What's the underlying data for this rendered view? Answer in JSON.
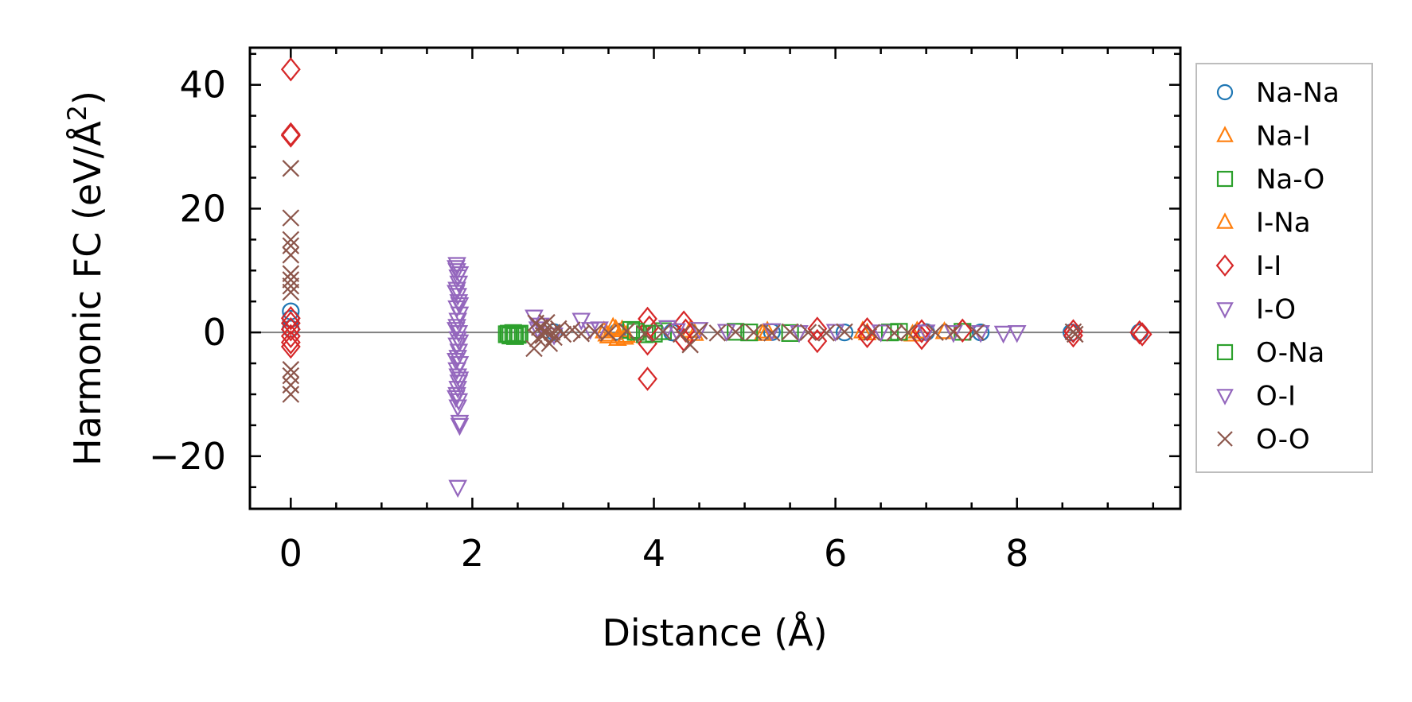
{
  "chart_data": {
    "type": "scatter",
    "title": "",
    "xlabel": "Distance (Å)",
    "ylabel_main": "Harmonic FC (eV/Å",
    "ylabel_sup": "2",
    "ylabel_close": ")",
    "xlim": [
      -0.45,
      9.8
    ],
    "ylim": [
      -28.5,
      46
    ],
    "xticks": [
      0,
      2,
      4,
      6,
      8
    ],
    "xtick_labels": [
      "0",
      "2",
      "4",
      "6",
      "8"
    ],
    "yticks": [
      -20,
      0,
      20,
      40
    ],
    "ytick_labels": [
      "−20",
      "0",
      "20",
      "40"
    ],
    "x_minor_step": 0.5,
    "y_minor_step": 5,
    "zero_line": true,
    "grid": false,
    "legend_position": "outside-right",
    "series": [
      {
        "name": "Na-Na",
        "marker": "circle",
        "color": "#1f77b4",
        "points": [
          [
            0,
            3.4
          ],
          [
            0,
            2.2
          ],
          [
            0,
            0.6
          ],
          [
            9.35,
            0.0
          ],
          [
            2.9,
            0.05
          ],
          [
            3.6,
            0.1
          ],
          [
            4.2,
            0.0
          ],
          [
            5.3,
            0.05
          ],
          [
            6.1,
            0.0
          ],
          [
            7.0,
            0.05
          ],
          [
            7.6,
            0.0
          ],
          [
            8.6,
            0.0
          ]
        ]
      },
      {
        "name": "Na-I",
        "marker": "triangle-up",
        "color": "#ff7f0e",
        "points": [
          [
            3.45,
            0.2
          ],
          [
            3.5,
            -0.6
          ],
          [
            3.55,
            0.8
          ],
          [
            3.6,
            -1.0
          ],
          [
            3.65,
            0.4
          ],
          [
            3.7,
            -0.5
          ],
          [
            4.4,
            0.3
          ],
          [
            5.2,
            -0.2
          ],
          [
            6.3,
            0.2
          ],
          [
            6.85,
            -0.3
          ],
          [
            7.2,
            0.1
          ]
        ]
      },
      {
        "name": "Na-O",
        "marker": "square",
        "color": "#2ca02c",
        "points": [
          [
            2.38,
            -0.3
          ],
          [
            2.42,
            -0.5
          ],
          [
            2.45,
            -0.1
          ],
          [
            2.5,
            -0.4
          ],
          [
            3.75,
            0.4
          ],
          [
            3.9,
            -0.3
          ],
          [
            4.1,
            0.2
          ],
          [
            4.9,
            0.1
          ],
          [
            5.5,
            -0.1
          ],
          [
            6.6,
            0.0
          ],
          [
            7.4,
            0.1
          ]
        ]
      },
      {
        "name": "I-Na",
        "marker": "triangle-up",
        "color": "#ff7f0e",
        "points": [
          [
            3.48,
            -0.3
          ],
          [
            3.58,
            0.5
          ],
          [
            3.68,
            -0.8
          ],
          [
            4.45,
            -0.2
          ],
          [
            5.25,
            0.2
          ],
          [
            6.35,
            -0.1
          ],
          [
            6.9,
            0.2
          ]
        ]
      },
      {
        "name": "I-I",
        "marker": "diamond",
        "color": "#d62728",
        "points": [
          [
            0,
            42.5
          ],
          [
            0,
            32
          ],
          [
            0,
            31.8
          ],
          [
            0,
            2.3
          ],
          [
            0,
            1.5
          ],
          [
            0,
            0.5
          ],
          [
            0,
            -0.6
          ],
          [
            0,
            -1.6
          ],
          [
            0,
            -2.3
          ],
          [
            3.93,
            2.2
          ],
          [
            3.93,
            -1.8
          ],
          [
            3.93,
            -7.5
          ],
          [
            3.95,
            0.8
          ],
          [
            4.33,
            1.6
          ],
          [
            4.33,
            -1.2
          ],
          [
            4.35,
            0.3
          ],
          [
            5.8,
            0.6
          ],
          [
            5.8,
            -1.4
          ],
          [
            6.35,
            0.5
          ],
          [
            6.35,
            -0.6
          ],
          [
            6.95,
            0.2
          ],
          [
            6.95,
            -0.9
          ],
          [
            7.4,
            0.3
          ],
          [
            8.62,
            0.2
          ],
          [
            8.62,
            -0.5
          ],
          [
            9.35,
            0.0
          ],
          [
            9.38,
            -0.3
          ]
        ]
      },
      {
        "name": "I-O",
        "marker": "triangle-down",
        "color": "#9467bd",
        "points": [
          [
            1.83,
            11
          ],
          [
            1.83,
            10
          ],
          [
            1.84,
            9
          ],
          [
            1.85,
            8
          ],
          [
            1.83,
            7
          ],
          [
            1.84,
            6
          ],
          [
            1.85,
            5
          ],
          [
            1.83,
            4
          ],
          [
            1.86,
            3
          ],
          [
            1.84,
            2
          ],
          [
            1.83,
            1
          ],
          [
            1.85,
            0
          ],
          [
            1.84,
            -1
          ],
          [
            1.83,
            -2
          ],
          [
            1.85,
            -3
          ],
          [
            1.84,
            -4
          ],
          [
            1.86,
            -5
          ],
          [
            1.83,
            -6
          ],
          [
            1.84,
            -7
          ],
          [
            1.85,
            -8
          ],
          [
            1.84,
            -9
          ],
          [
            1.83,
            -10
          ],
          [
            1.85,
            -11
          ],
          [
            1.84,
            -12
          ],
          [
            1.86,
            -14.5
          ],
          [
            1.84,
            -25
          ],
          [
            2.68,
            2.5
          ],
          [
            2.72,
            0.6
          ],
          [
            3.2,
            2.0
          ],
          [
            3.3,
            0.5
          ],
          [
            4.15,
            0.8
          ],
          [
            4.5,
            0.5
          ],
          [
            5.3,
            0.3
          ],
          [
            6.0,
            0.2
          ],
          [
            7.0,
            0.1
          ],
          [
            7.6,
            0.0
          ],
          [
            7.85,
            -0.1
          ],
          [
            8.0,
            0.0
          ]
        ]
      },
      {
        "name": "O-Na",
        "marker": "square",
        "color": "#2ca02c",
        "points": [
          [
            2.4,
            -0.2
          ],
          [
            2.47,
            -0.6
          ],
          [
            2.52,
            -0.2
          ],
          [
            3.8,
            0.1
          ],
          [
            4.0,
            -0.2
          ],
          [
            5.05,
            0.0
          ],
          [
            6.7,
            0.1
          ]
        ]
      },
      {
        "name": "O-I",
        "marker": "triangle-down",
        "color": "#9467bd",
        "points": [
          [
            1.82,
            10.5
          ],
          [
            1.86,
            9.5
          ],
          [
            1.82,
            6.5
          ],
          [
            1.86,
            4.5
          ],
          [
            1.82,
            0.5
          ],
          [
            1.86,
            -1.5
          ],
          [
            1.82,
            -4.5
          ],
          [
            1.86,
            -7.5
          ],
          [
            1.82,
            -10.5
          ],
          [
            1.86,
            -15
          ],
          [
            2.75,
            1.2
          ],
          [
            2.9,
            -0.4
          ],
          [
            3.4,
            0.6
          ],
          [
            4.25,
            0.3
          ],
          [
            4.8,
            0.2
          ],
          [
            5.6,
            0.0
          ],
          [
            6.5,
            0.1
          ],
          [
            7.3,
            0.0
          ]
        ]
      },
      {
        "name": "O-O",
        "marker": "x",
        "color": "#8c564b",
        "points": [
          [
            0,
            26.5
          ],
          [
            0,
            18.5
          ],
          [
            0,
            15
          ],
          [
            0,
            14
          ],
          [
            0,
            12.5
          ],
          [
            0,
            9.5
          ],
          [
            0,
            8.5
          ],
          [
            0,
            7.5
          ],
          [
            0,
            6.5
          ],
          [
            0,
            -6
          ],
          [
            0,
            -7
          ],
          [
            0,
            -8.5
          ],
          [
            0,
            -10
          ],
          [
            2.68,
            -2.6
          ],
          [
            2.7,
            1.5
          ],
          [
            2.72,
            -1.0
          ],
          [
            2.74,
            0.8
          ],
          [
            2.78,
            -0.5
          ],
          [
            2.8,
            0.3
          ],
          [
            2.82,
            1.6
          ],
          [
            2.85,
            -1.8
          ],
          [
            2.88,
            0.0
          ],
          [
            2.9,
            -0.8
          ],
          [
            2.95,
            0.6
          ],
          [
            3.0,
            -0.3
          ],
          [
            3.1,
            0.4
          ],
          [
            3.2,
            -0.2
          ],
          [
            3.35,
            0.1
          ],
          [
            3.5,
            -0.1
          ],
          [
            3.7,
            0.2
          ],
          [
            3.9,
            -0.2
          ],
          [
            4.1,
            0.1
          ],
          [
            4.3,
            -0.3
          ],
          [
            4.4,
            -2.0
          ],
          [
            4.5,
            0.2
          ],
          [
            4.7,
            -0.1
          ],
          [
            4.9,
            0.1
          ],
          [
            5.1,
            0.0
          ],
          [
            5.3,
            -0.1
          ],
          [
            5.5,
            0.1
          ],
          [
            5.7,
            0.0
          ],
          [
            5.9,
            -0.1
          ],
          [
            6.1,
            0.1
          ],
          [
            6.4,
            0.0
          ],
          [
            6.65,
            -0.1
          ],
          [
            6.8,
            0.0
          ],
          [
            7.1,
            0.0
          ],
          [
            7.3,
            0.1
          ],
          [
            7.55,
            0.0
          ],
          [
            8.62,
            0.1
          ],
          [
            8.64,
            -0.3
          ]
        ]
      }
    ]
  }
}
